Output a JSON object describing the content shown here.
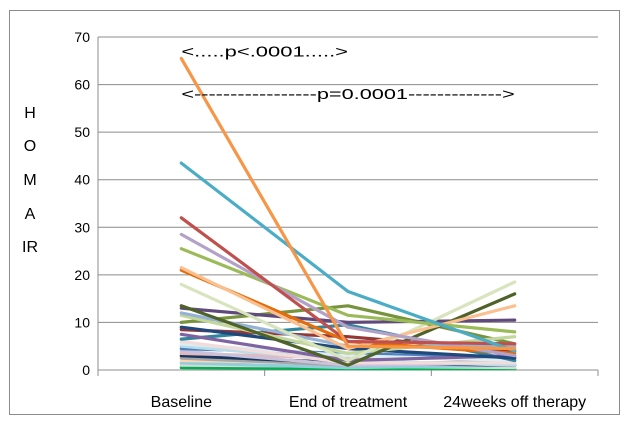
{
  "chart_data": {
    "type": "line",
    "ylabel_lines": [
      "H",
      "O",
      "M",
      "A",
      "IR"
    ],
    "categories": [
      "Baseline",
      "End of treatment",
      "24weeks off therapy"
    ],
    "ylim": [
      0,
      70
    ],
    "yticks": [
      0,
      10,
      20,
      30,
      40,
      50,
      60,
      70
    ],
    "grid": "horizontal",
    "annotations": [
      {
        "text": "<.....p<.0001.....>",
        "from": "Baseline",
        "to": "End of treatment",
        "y": 67
      },
      {
        "text": "<-----------------p=0.0001------------->",
        "from": "Baseline",
        "to": "24weeks off therapy",
        "y": 58
      }
    ],
    "series": [
      {
        "color": "#f79646",
        "values": [
          65.5,
          5,
          4.5
        ]
      },
      {
        "color": "#4bacc6",
        "values": [
          43.5,
          16.5,
          4
        ]
      },
      {
        "color": "#c0504d",
        "values": [
          32,
          6,
          5.5
        ]
      },
      {
        "color": "#b3a2c7",
        "values": [
          28.5,
          9,
          3
        ]
      },
      {
        "color": "#9bbb59",
        "values": [
          25.5,
          11.5,
          8
        ]
      },
      {
        "color": "#fac090",
        "values": [
          21.5,
          4.5,
          13.5
        ]
      },
      {
        "color": "#e46c0a",
        "values": [
          21,
          6,
          3.5
        ]
      },
      {
        "color": "#d7e4bd",
        "values": [
          18,
          2,
          18.5
        ]
      },
      {
        "color": "#4f6228",
        "values": [
          13.5,
          1,
          16
        ]
      },
      {
        "color": "#604a7b",
        "values": [
          13,
          10,
          10.5
        ]
      },
      {
        "color": "#95b3d7",
        "values": [
          12,
          5,
          5
        ]
      },
      {
        "color": "#c3d69b",
        "values": [
          11.5,
          3.5,
          7
        ]
      },
      {
        "color": "#77933c",
        "values": [
          10,
          13.5,
          5.5
        ]
      },
      {
        "color": "#1f497d",
        "values": [
          9,
          4.5,
          2.5
        ]
      },
      {
        "color": "#953735",
        "values": [
          8.5,
          7,
          4
        ]
      },
      {
        "color": "#8064a2",
        "values": [
          7.5,
          2,
          3
        ]
      },
      {
        "color": "#31859c",
        "values": [
          6.5,
          9.5,
          2
        ]
      },
      {
        "color": "#f2dcdb",
        "values": [
          6,
          1.5,
          1.5
        ]
      },
      {
        "color": "#dbeef4",
        "values": [
          5.5,
          3,
          2
        ]
      },
      {
        "color": "#b7dde8",
        "values": [
          5,
          2,
          1
        ]
      },
      {
        "color": "#4f81bd",
        "values": [
          4.5,
          3.5,
          2.5
        ]
      },
      {
        "color": "#ccc1da",
        "values": [
          4,
          1,
          1.5
        ]
      },
      {
        "color": "#e6b9b8",
        "values": [
          3.5,
          2.5,
          3
        ]
      },
      {
        "color": "#17375e",
        "values": [
          3,
          1.5,
          1
        ]
      },
      {
        "color": "#a6a6a6",
        "values": [
          2.5,
          1,
          2
        ]
      },
      {
        "color": "#fcd5b5",
        "values": [
          2,
          1.5,
          1
        ]
      },
      {
        "color": "#92cddc",
        "values": [
          1.5,
          0.5,
          1
        ]
      },
      {
        "color": "#d9d9d9",
        "values": [
          1,
          0.8,
          0.5
        ]
      },
      {
        "color": "#00b050",
        "values": [
          0.5,
          0.3,
          0.3
        ]
      }
    ]
  }
}
